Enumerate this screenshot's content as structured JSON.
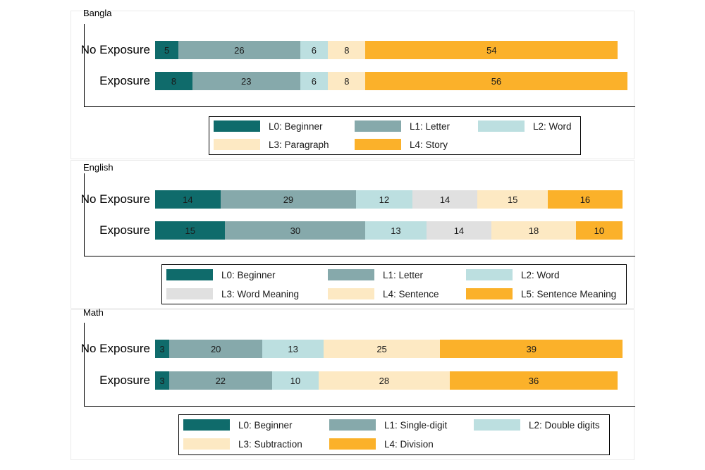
{
  "colors": {
    "L0": "#0f6b6b",
    "L1": "#86a9ab",
    "L2": "#bcdfe0",
    "L3_grey": "#e0e0e0",
    "L_cream": "#fde9c3",
    "L_orange": "#fbb12a"
  },
  "chart_data": [
    {
      "type": "bar",
      "orientation": "horizontal",
      "stacked": true,
      "title": "Bangla",
      "categories": [
        "No Exposure",
        "Exposure"
      ],
      "series": [
        {
          "name": "L0: Beginner",
          "values": [
            5,
            8
          ],
          "color": "#0f6b6b"
        },
        {
          "name": "L1: Letter",
          "values": [
            26,
            23
          ],
          "color": "#86a9ab"
        },
        {
          "name": "L2: Word",
          "values": [
            6,
            6
          ],
          "color": "#bcdfe0"
        },
        {
          "name": "L3: Paragraph",
          "values": [
            8,
            8
          ],
          "color": "#fde9c3"
        },
        {
          "name": "L4: Story",
          "values": [
            54,
            56
          ],
          "color": "#fbb12a"
        }
      ],
      "xlim": [
        0,
        100
      ],
      "legend": "bottom"
    },
    {
      "type": "bar",
      "orientation": "horizontal",
      "stacked": true,
      "title": "English",
      "categories": [
        "No Exposure",
        "Exposure"
      ],
      "series": [
        {
          "name": "L0: Beginner",
          "values": [
            14,
            15
          ],
          "color": "#0f6b6b"
        },
        {
          "name": "L1: Letter",
          "values": [
            29,
            30
          ],
          "color": "#86a9ab"
        },
        {
          "name": "L2: Word",
          "values": [
            12,
            13
          ],
          "color": "#bcdfe0"
        },
        {
          "name": "L3: Word Meaning",
          "values": [
            14,
            14
          ],
          "color": "#e0e0e0"
        },
        {
          "name": "L4: Sentence",
          "values": [
            15,
            18
          ],
          "color": "#fde9c3"
        },
        {
          "name": "L5: Sentence Meaning",
          "values": [
            16,
            10
          ],
          "color": "#fbb12a"
        }
      ],
      "xlim": [
        0,
        100
      ],
      "legend": "bottom"
    },
    {
      "type": "bar",
      "orientation": "horizontal",
      "stacked": true,
      "title": "Math",
      "categories": [
        "No Exposure",
        "Exposure"
      ],
      "series": [
        {
          "name": "L0: Beginner",
          "values": [
            3,
            3
          ],
          "color": "#0f6b6b"
        },
        {
          "name": "L1: Single-digit",
          "values": [
            20,
            22
          ],
          "color": "#86a9ab"
        },
        {
          "name": "L2: Double digits",
          "values": [
            13,
            10
          ],
          "color": "#bcdfe0"
        },
        {
          "name": "L3: Subtraction",
          "values": [
            25,
            28
          ],
          "color": "#fde9c3"
        },
        {
          "name": "L4: Division",
          "values": [
            39,
            36
          ],
          "color": "#fbb12a"
        }
      ],
      "xlim": [
        0,
        100
      ],
      "legend": "bottom"
    }
  ]
}
